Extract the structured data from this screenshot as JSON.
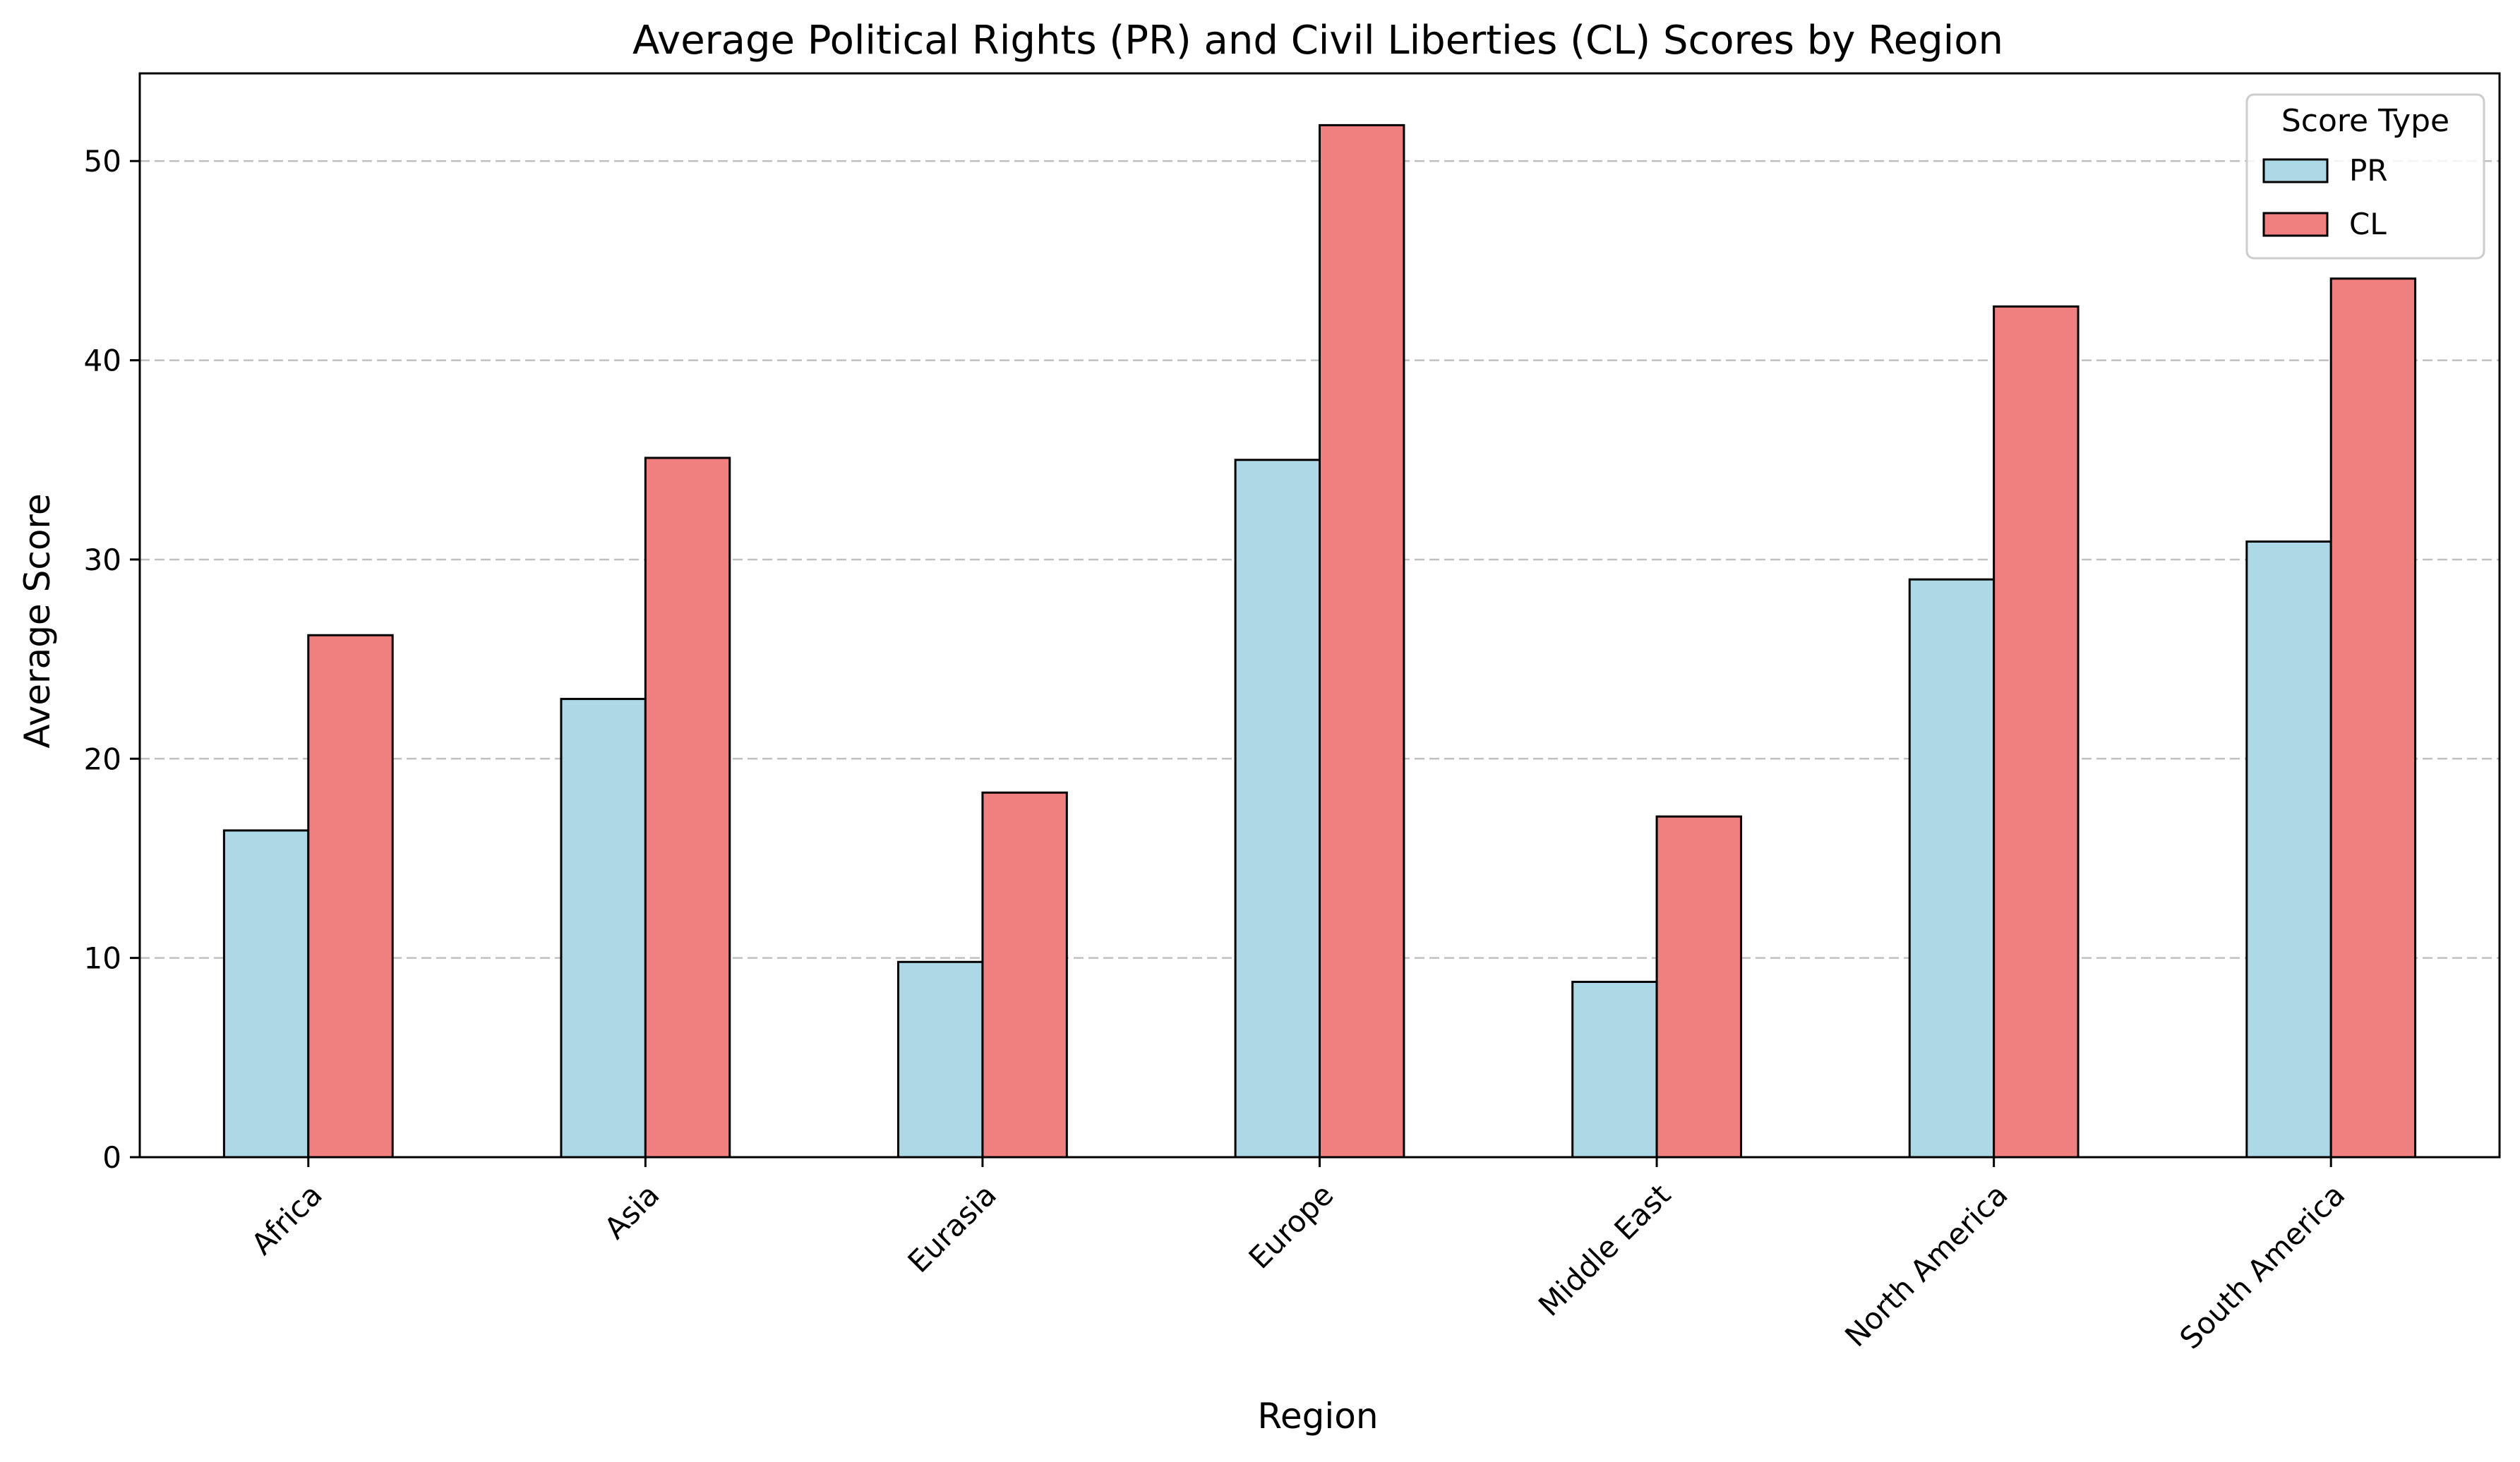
{
  "chart_data": {
    "type": "bar",
    "title": "Average Political Rights (PR) and Civil Liberties (CL) Scores by Region",
    "xlabel": "Region",
    "ylabel": "Average Score",
    "categories": [
      "Africa",
      "Asia",
      "Eurasia",
      "Europe",
      "Middle East",
      "North America",
      "South America"
    ],
    "series": [
      {
        "name": "PR",
        "color": "#add8e6",
        "values": [
          16.4,
          23.0,
          9.8,
          35.0,
          8.8,
          29.0,
          30.9
        ]
      },
      {
        "name": "CL",
        "color": "#f08080",
        "values": [
          26.2,
          35.1,
          18.3,
          51.8,
          17.1,
          42.7,
          44.1
        ]
      }
    ],
    "ylim": [
      0,
      54.4
    ],
    "yticks": [
      0,
      10,
      20,
      30,
      40,
      50
    ],
    "grid": {
      "axis": "y",
      "style": "dashed"
    },
    "legend": {
      "title": "Score Type",
      "placement": "top-right"
    }
  }
}
